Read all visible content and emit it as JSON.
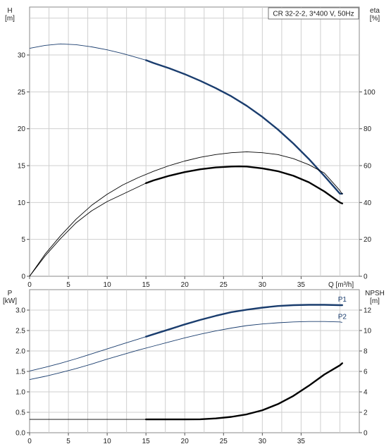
{
  "chart_data": [
    {
      "type": "line",
      "title": "CR 32-2-2, 3*400 V, 50Hz",
      "xlabel": "Q [m³/h]",
      "ylabel": "H\n[m]",
      "ylabel_right": "eta\n[%]",
      "xlim": [
        0,
        42.5
      ],
      "ylim": [
        0,
        36.5
      ],
      "ylim_right": [
        0,
        146
      ],
      "xticks": [
        0,
        5,
        10,
        15,
        20,
        25,
        30,
        35
      ],
      "yticks": [
        0,
        5,
        10,
        15,
        20,
        25,
        30
      ],
      "yticks_right": [
        0,
        20,
        40,
        60,
        80,
        100
      ],
      "grid": true,
      "series": [
        {
          "axis": "left",
          "color": "#1a3d6e",
          "x": [
            0,
            2,
            4,
            6,
            8,
            10,
            12,
            14,
            15,
            16,
            18,
            20,
            22,
            24,
            26,
            28,
            30,
            32,
            34,
            36,
            38,
            40,
            40.3
          ],
          "values": [
            30.9,
            31.3,
            31.5,
            31.4,
            31.1,
            30.7,
            30.2,
            29.6,
            29.3,
            28.9,
            28.2,
            27.4,
            26.5,
            25.5,
            24.4,
            23.1,
            21.6,
            19.9,
            18.0,
            15.9,
            13.6,
            11.2,
            11.2
          ],
          "emphasis_from_x": 15
        },
        {
          "axis": "right",
          "color": "#000000",
          "x": [
            0,
            2,
            4,
            6,
            8,
            10,
            12,
            14,
            16,
            18,
            20,
            22,
            24,
            26,
            28,
            30,
            32,
            34,
            36,
            38,
            40,
            40.3
          ],
          "values": [
            0,
            12,
            22,
            31,
            38.5,
            44.5,
            49.5,
            53.5,
            57,
            60,
            62.5,
            64.5,
            66,
            67,
            67.5,
            67,
            66,
            63.8,
            60.5,
            56,
            46.5,
            44.5
          ]
        },
        {
          "axis": "right",
          "color": "#000000",
          "x": [
            0,
            2,
            4,
            6,
            8,
            10,
            12,
            14,
            15,
            16,
            18,
            20,
            22,
            24,
            26,
            27,
            28,
            30,
            32,
            34,
            36,
            38,
            40,
            40.3
          ],
          "values": [
            0,
            11,
            20.5,
            29,
            35.5,
            40.5,
            44.5,
            48.5,
            50.5,
            52,
            54.5,
            56.5,
            58,
            59,
            59.5,
            59.6,
            59.5,
            58.5,
            57,
            54.5,
            51,
            46,
            40,
            39.5
          ],
          "emphasis_from_x": 15
        }
      ]
    },
    {
      "type": "line",
      "xlabel": "",
      "ylabel": "P\n[kW]",
      "ylabel_right": "NPSH\n[m]",
      "xlim": [
        0,
        42.5
      ],
      "ylim": [
        0,
        3.5
      ],
      "ylim_right": [
        0,
        14
      ],
      "xticks": [
        0,
        5,
        10,
        15,
        20,
        25,
        30,
        35
      ],
      "yticks": [
        0.0,
        0.5,
        1.0,
        1.5,
        2.0,
        2.5,
        3.0
      ],
      "ytick_labels": [
        "0.0",
        "0.5",
        "1.0",
        "1.5",
        "2.0",
        "2.5",
        "3.0"
      ],
      "yticks_right": [
        0,
        2,
        4,
        6,
        8,
        10,
        12
      ],
      "grid": true,
      "series": [
        {
          "name": "P1",
          "axis": "left",
          "color": "#1a3d6e",
          "x": [
            0,
            2,
            4,
            6,
            8,
            10,
            12,
            14,
            15,
            16,
            18,
            20,
            22,
            24,
            26,
            28,
            30,
            32,
            34,
            36,
            38,
            40,
            40.3
          ],
          "values": [
            1.51,
            1.6,
            1.7,
            1.81,
            1.93,
            2.05,
            2.17,
            2.29,
            2.35,
            2.41,
            2.53,
            2.65,
            2.76,
            2.86,
            2.95,
            3.01,
            3.06,
            3.1,
            3.12,
            3.13,
            3.13,
            3.12,
            3.12
          ],
          "emphasis_from_x": 15
        },
        {
          "name": "P2",
          "axis": "left",
          "color": "#1a3d6e",
          "x": [
            0,
            2,
            4,
            6,
            8,
            10,
            12,
            14,
            16,
            18,
            20,
            22,
            24,
            26,
            28,
            30,
            32,
            34,
            36,
            38,
            40,
            40.3
          ],
          "values": [
            1.3,
            1.38,
            1.47,
            1.57,
            1.68,
            1.8,
            1.91,
            2.02,
            2.12,
            2.22,
            2.32,
            2.41,
            2.49,
            2.56,
            2.62,
            2.66,
            2.69,
            2.71,
            2.72,
            2.72,
            2.71,
            2.7
          ]
        },
        {
          "axis": "right",
          "color": "#000000",
          "x": [
            0,
            5,
            10,
            15,
            20,
            22,
            24,
            26,
            28,
            30,
            32,
            34,
            36,
            38,
            40,
            40.3
          ],
          "values": [
            1.3,
            1.3,
            1.3,
            1.3,
            1.3,
            1.32,
            1.4,
            1.55,
            1.8,
            2.2,
            2.8,
            3.6,
            4.6,
            5.7,
            6.6,
            6.8
          ],
          "emphasis_from_x": 15
        }
      ]
    }
  ]
}
